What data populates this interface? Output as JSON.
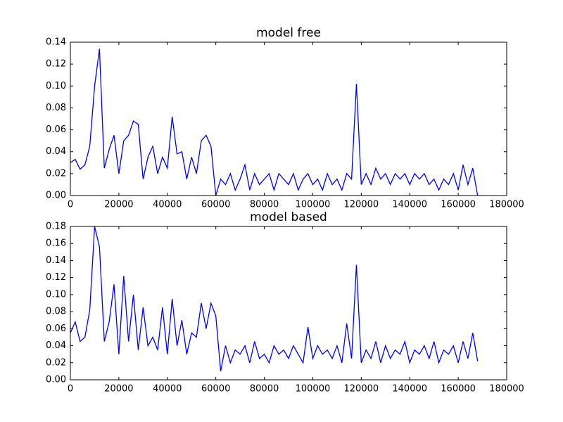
{
  "chart_data": [
    {
      "type": "line",
      "title": "model free",
      "x": [
        0,
        2000,
        4000,
        6000,
        8000,
        10000,
        12000,
        14000,
        16000,
        18000,
        20000,
        22000,
        24000,
        26000,
        28000,
        30000,
        32000,
        34000,
        36000,
        38000,
        40000,
        42000,
        44000,
        46000,
        48000,
        50000,
        52000,
        54000,
        56000,
        58000,
        60000,
        62000,
        64000,
        66000,
        68000,
        70000,
        72000,
        74000,
        76000,
        78000,
        80000,
        82000,
        84000,
        86000,
        88000,
        90000,
        92000,
        94000,
        96000,
        98000,
        100000,
        102000,
        104000,
        106000,
        108000,
        110000,
        112000,
        114000,
        116000,
        118000,
        120000,
        122000,
        124000,
        126000,
        128000,
        130000,
        132000,
        134000,
        136000,
        138000,
        140000,
        142000,
        144000,
        146000,
        148000,
        150000,
        152000,
        154000,
        156000,
        158000,
        160000,
        162000,
        164000,
        166000,
        168000
      ],
      "series": [
        {
          "color": "#0000ff",
          "values": [
            0.03,
            0.033,
            0.024,
            0.028,
            0.045,
            0.1,
            0.134,
            0.025,
            0.042,
            0.055,
            0.02,
            0.05,
            0.055,
            0.068,
            0.065,
            0.015,
            0.035,
            0.045,
            0.02,
            0.035,
            0.025,
            0.072,
            0.038,
            0.04,
            0.015,
            0.035,
            0.02,
            0.05,
            0.055,
            0.045,
            0.0,
            0.015,
            0.01,
            0.02,
            0.005,
            0.015,
            0.028,
            0.005,
            0.02,
            0.01,
            0.015,
            0.02,
            0.005,
            0.02,
            0.015,
            0.01,
            0.02,
            0.005,
            0.015,
            0.02,
            0.01,
            0.015,
            0.005,
            0.02,
            0.01,
            0.015,
            0.005,
            0.02,
            0.015,
            0.102,
            0.01,
            0.02,
            0.01,
            0.025,
            0.015,
            0.02,
            0.01,
            0.02,
            0.015,
            0.02,
            0.01,
            0.02,
            0.015,
            0.02,
            0.01,
            0.015,
            0.005,
            0.015,
            0.01,
            0.02,
            0.005,
            0.028,
            0.01,
            0.025,
            0.0
          ]
        }
      ],
      "xlim": [
        0,
        180000
      ],
      "xticks": [
        0,
        20000,
        40000,
        60000,
        80000,
        100000,
        120000,
        140000,
        160000,
        180000
      ],
      "ylim": [
        0,
        0.14
      ],
      "yticks": [
        {
          "value": 0,
          "label": "0.00"
        },
        {
          "value": 0.02,
          "label": "0.02"
        },
        {
          "value": 0.04,
          "label": "0.04"
        },
        {
          "value": 0.06,
          "label": "0.06"
        },
        {
          "value": 0.08,
          "label": "0.08"
        },
        {
          "value": 0.1,
          "label": "0.10"
        },
        {
          "value": 0.12,
          "label": "0.12"
        },
        {
          "value": 0.14,
          "label": "0.14"
        }
      ]
    },
    {
      "type": "line",
      "title": "model based",
      "x": [
        0,
        2000,
        4000,
        6000,
        8000,
        10000,
        12000,
        14000,
        16000,
        18000,
        20000,
        22000,
        24000,
        26000,
        28000,
        30000,
        32000,
        34000,
        36000,
        38000,
        40000,
        42000,
        44000,
        46000,
        48000,
        50000,
        52000,
        54000,
        56000,
        58000,
        60000,
        62000,
        64000,
        66000,
        68000,
        70000,
        72000,
        74000,
        76000,
        78000,
        80000,
        82000,
        84000,
        86000,
        88000,
        90000,
        92000,
        94000,
        96000,
        98000,
        100000,
        102000,
        104000,
        106000,
        108000,
        110000,
        112000,
        114000,
        116000,
        118000,
        120000,
        122000,
        124000,
        126000,
        128000,
        130000,
        132000,
        134000,
        136000,
        138000,
        140000,
        142000,
        144000,
        146000,
        148000,
        150000,
        152000,
        154000,
        156000,
        158000,
        160000,
        162000,
        164000,
        166000,
        168000
      ],
      "series": [
        {
          "color": "#0000ff",
          "values": [
            0.055,
            0.068,
            0.045,
            0.05,
            0.082,
            0.18,
            0.156,
            0.045,
            0.068,
            0.112,
            0.03,
            0.122,
            0.045,
            0.1,
            0.035,
            0.085,
            0.04,
            0.05,
            0.035,
            0.085,
            0.03,
            0.095,
            0.04,
            0.07,
            0.03,
            0.055,
            0.05,
            0.09,
            0.06,
            0.09,
            0.075,
            0.01,
            0.04,
            0.02,
            0.035,
            0.03,
            0.04,
            0.02,
            0.045,
            0.025,
            0.03,
            0.02,
            0.04,
            0.03,
            0.035,
            0.025,
            0.04,
            0.03,
            0.02,
            0.062,
            0.025,
            0.04,
            0.03,
            0.035,
            0.025,
            0.04,
            0.02,
            0.066,
            0.025,
            0.135,
            0.02,
            0.035,
            0.025,
            0.045,
            0.02,
            0.04,
            0.025,
            0.035,
            0.03,
            0.045,
            0.02,
            0.035,
            0.03,
            0.04,
            0.025,
            0.045,
            0.02,
            0.035,
            0.03,
            0.04,
            0.02,
            0.045,
            0.025,
            0.055,
            0.022
          ]
        }
      ],
      "xlim": [
        0,
        180000
      ],
      "xticks": [
        0,
        20000,
        40000,
        60000,
        80000,
        100000,
        120000,
        140000,
        160000,
        180000
      ],
      "ylim": [
        0,
        0.18
      ],
      "yticks": [
        {
          "value": 0,
          "label": "0.00"
        },
        {
          "value": 0.02,
          "label": "0.02"
        },
        {
          "value": 0.04,
          "label": "0.04"
        },
        {
          "value": 0.06,
          "label": "0.06"
        },
        {
          "value": 0.08,
          "label": "0.08"
        },
        {
          "value": 0.1,
          "label": "0.10"
        },
        {
          "value": 0.12,
          "label": "0.12"
        },
        {
          "value": 0.14,
          "label": "0.14"
        },
        {
          "value": 0.16,
          "label": "0.16"
        },
        {
          "value": 0.18,
          "label": "0.18"
        }
      ]
    }
  ]
}
